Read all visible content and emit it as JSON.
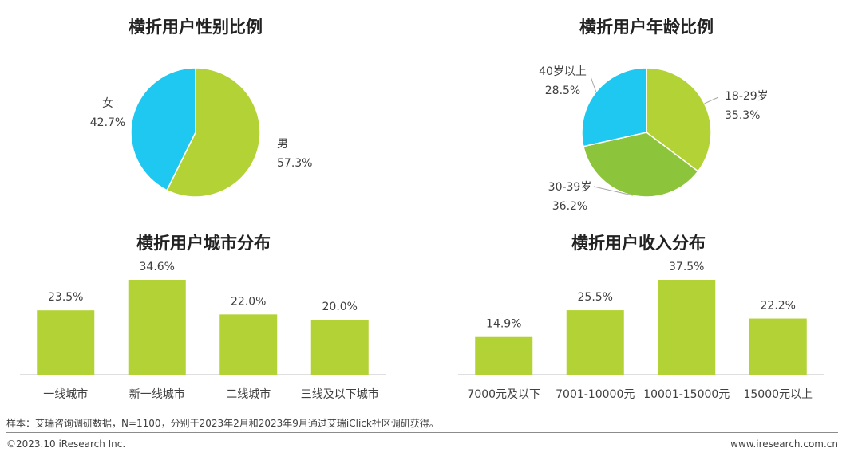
{
  "colors": {
    "green": "#b2d235",
    "blue": "#1ec8f0",
    "darkgreen": "#8cc43c"
  },
  "chart_data": [
    {
      "type": "pie",
      "title": "横折用户性别比例",
      "labels": [
        "男",
        "女"
      ],
      "values": [
        57.3,
        42.7
      ],
      "value_labels": [
        "57.3%",
        "42.7%"
      ],
      "colors": [
        "#b2d235",
        "#1ec8f0"
      ]
    },
    {
      "type": "pie",
      "title": "横折用户年龄比例",
      "labels": [
        "18-29岁",
        "30-39岁",
        "40岁以上"
      ],
      "values": [
        35.3,
        36.2,
        28.5
      ],
      "value_labels": [
        "35.3%",
        "36.2%",
        "28.5%"
      ],
      "colors": [
        "#b2d235",
        "#8cc43c",
        "#1ec8f0"
      ]
    },
    {
      "type": "bar",
      "title": "横折用户城市分布",
      "categories": [
        "一线城市",
        "新一线城市",
        "二线城市",
        "三线及以下城市"
      ],
      "values": [
        23.5,
        34.6,
        22.0,
        20.0
      ],
      "value_labels": [
        "23.5%",
        "34.6%",
        "22.0%",
        "20.0%"
      ],
      "color": "#b2d235"
    },
    {
      "type": "bar",
      "title": "横折用户收入分布",
      "categories": [
        "7000元及以下",
        "7001-10000元",
        "10001-15000元",
        "15000元以上"
      ],
      "values": [
        14.9,
        25.5,
        37.5,
        22.2
      ],
      "value_labels": [
        "14.9%",
        "25.5%",
        "37.5%",
        "22.2%"
      ],
      "color": "#b2d235"
    }
  ],
  "footer": {
    "source": "样本：艾瑞咨询调研数据，N=1100，分别于2023年2月和2023年9月通过艾瑞iClick社区调研获得。",
    "copyright": "©2023.10 iResearch Inc.",
    "website": "www.iresearch.com.cn"
  }
}
